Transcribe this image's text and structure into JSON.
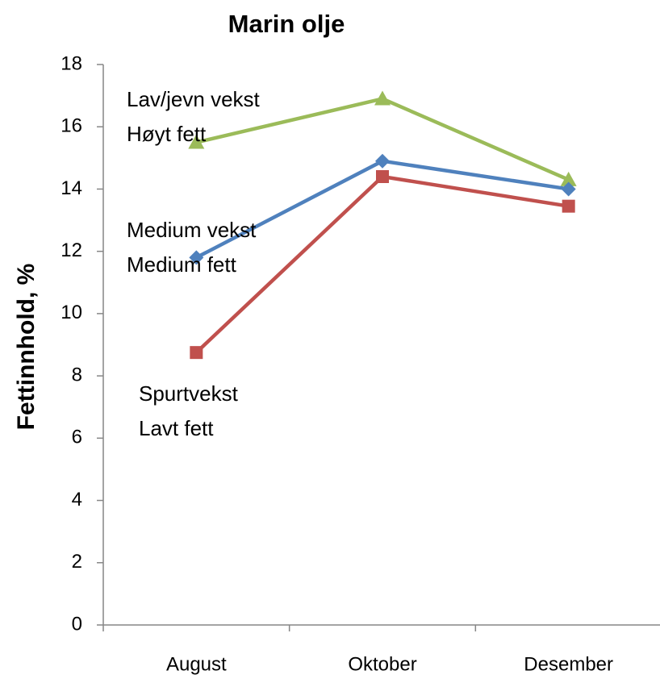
{
  "chart_data": {
    "type": "line",
    "title": "Marin olje",
    "y_label": "Fettinnhold, %",
    "categories": [
      "August",
      "Oktober",
      "Desember"
    ],
    "series": [
      {
        "color": "#9bbb59",
        "marker": "triangle",
        "values": [
          15.5,
          16.9,
          14.3
        ]
      },
      {
        "color": "#4f81bd",
        "marker": "diamond",
        "values": [
          11.8,
          14.9,
          14.0
        ]
      },
      {
        "color": "#c0504d",
        "marker": "square",
        "values": [
          8.75,
          14.4,
          13.45
        ]
      }
    ],
    "annotations": [
      {
        "lines": [
          "Lav/jevn vekst",
          "Høyt fett"
        ]
      },
      {
        "lines": [
          "Medium vekst",
          "Medium fett"
        ]
      },
      {
        "lines": [
          "Spurtvekst",
          "Lavt fett"
        ]
      }
    ],
    "ylim": [
      0,
      18
    ],
    "yticks": [
      0,
      2,
      4,
      6,
      8,
      10,
      12,
      14,
      16,
      18
    ],
    "grid": false
  }
}
